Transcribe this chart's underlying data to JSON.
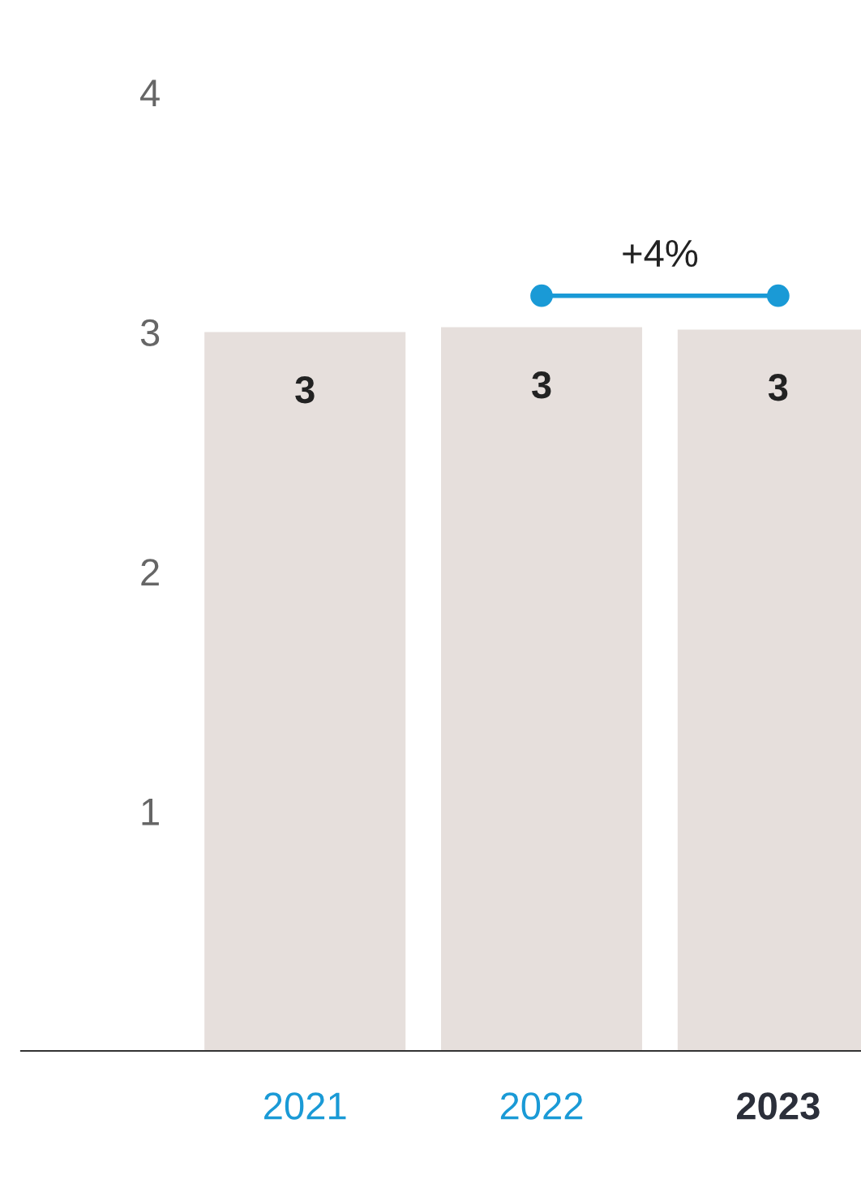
{
  "chart_data": {
    "type": "bar",
    "categories": [
      "2021",
      "2022",
      "2023"
    ],
    "values": [
      3.0,
      3.02,
      3.01
    ],
    "value_labels": [
      "3",
      "3",
      "3"
    ],
    "color": "#e6dfdc",
    "ylim": [
      0,
      4
    ],
    "yticks": [
      1,
      2,
      3,
      4
    ],
    "grid": false,
    "annotations": [
      "+4%"
    ]
  }
}
